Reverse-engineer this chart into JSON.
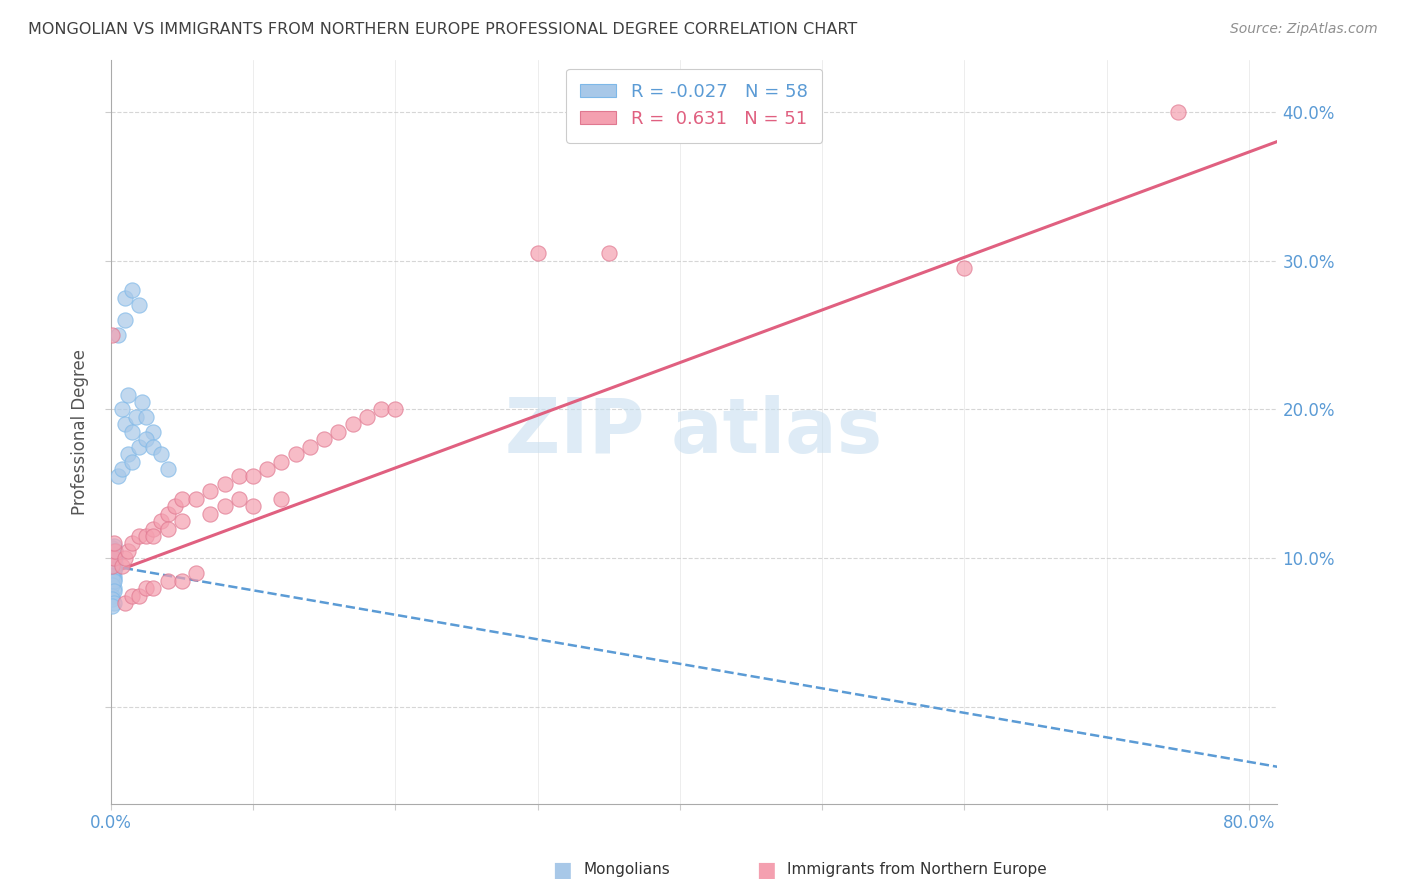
{
  "title": "MONGOLIAN VS IMMIGRANTS FROM NORTHERN EUROPE PROFESSIONAL DEGREE CORRELATION CHART",
  "source": "Source: ZipAtlas.com",
  "ylabel": "Professional Degree",
  "blue_color": "#A8C8E8",
  "blue_edge": "#7EB8E8",
  "pink_color": "#F4A0B0",
  "pink_edge": "#E07890",
  "trend_blue_color": "#5B9BD5",
  "trend_pink_color": "#E06080",
  "watermark_color": "#C8DFF0",
  "title_color": "#404040",
  "source_color": "#909090",
  "tick_color": "#5B9BD5",
  "ylabel_color": "#555555",
  "grid_color": "#CCCCCC",
  "xlim": [
    0.0,
    0.82
  ],
  "ylim": [
    -0.065,
    0.435
  ],
  "x_ticks": [
    0.0,
    0.1,
    0.2,
    0.3,
    0.4,
    0.5,
    0.6,
    0.7,
    0.8
  ],
  "y_ticks": [
    0.0,
    0.1,
    0.2,
    0.3,
    0.4
  ],
  "trend_pink_x0": 0.0,
  "trend_pink_y0": 0.09,
  "trend_pink_x1": 0.82,
  "trend_pink_y1": 0.38,
  "trend_blue_x0": 0.0,
  "trend_blue_y0": 0.095,
  "trend_blue_x1": 0.82,
  "trend_blue_y1": -0.04,
  "mongolians_x": [
    0.002,
    0.001,
    0.003,
    0.001,
    0.002,
    0.001,
    0.002,
    0.003,
    0.001,
    0.002,
    0.001,
    0.002,
    0.001,
    0.003,
    0.001,
    0.002,
    0.001,
    0.002,
    0.001,
    0.002,
    0.001,
    0.002,
    0.001,
    0.002,
    0.001,
    0.002,
    0.001,
    0.002,
    0.001,
    0.002,
    0.001,
    0.002,
    0.001,
    0.002,
    0.001,
    0.008,
    0.01,
    0.012,
    0.015,
    0.018,
    0.022,
    0.025,
    0.03,
    0.005,
    0.008,
    0.012,
    0.015,
    0.02,
    0.025,
    0.03,
    0.035,
    0.04,
    0.01,
    0.015,
    0.02,
    0.005,
    0.01
  ],
  "mongolians_y": [
    0.095,
    0.098,
    0.1,
    0.1,
    0.102,
    0.103,
    0.105,
    0.105,
    0.107,
    0.108,
    0.09,
    0.092,
    0.095,
    0.096,
    0.098,
    0.1,
    0.1,
    0.102,
    0.103,
    0.105,
    0.085,
    0.088,
    0.09,
    0.092,
    0.083,
    0.086,
    0.088,
    0.08,
    0.082,
    0.085,
    0.075,
    0.078,
    0.073,
    0.07,
    0.068,
    0.2,
    0.19,
    0.21,
    0.185,
    0.195,
    0.205,
    0.195,
    0.185,
    0.155,
    0.16,
    0.17,
    0.165,
    0.175,
    0.18,
    0.175,
    0.17,
    0.16,
    0.275,
    0.28,
    0.27,
    0.25,
    0.26
  ],
  "north_x": [
    0.001,
    0.002,
    0.003,
    0.002,
    0.001,
    0.008,
    0.01,
    0.012,
    0.015,
    0.02,
    0.025,
    0.03,
    0.035,
    0.04,
    0.045,
    0.05,
    0.06,
    0.07,
    0.08,
    0.09,
    0.1,
    0.11,
    0.12,
    0.13,
    0.14,
    0.15,
    0.16,
    0.17,
    0.18,
    0.19,
    0.2,
    0.01,
    0.015,
    0.02,
    0.025,
    0.03,
    0.04,
    0.05,
    0.06,
    0.03,
    0.04,
    0.05,
    0.07,
    0.08,
    0.09,
    0.1,
    0.12,
    0.3,
    0.35,
    0.6,
    0.75
  ],
  "north_y": [
    0.095,
    0.1,
    0.105,
    0.11,
    0.25,
    0.095,
    0.1,
    0.105,
    0.11,
    0.115,
    0.115,
    0.12,
    0.125,
    0.13,
    0.135,
    0.14,
    0.14,
    0.145,
    0.15,
    0.155,
    0.155,
    0.16,
    0.165,
    0.17,
    0.175,
    0.18,
    0.185,
    0.19,
    0.195,
    0.2,
    0.2,
    0.07,
    0.075,
    0.075,
    0.08,
    0.08,
    0.085,
    0.085,
    0.09,
    0.115,
    0.12,
    0.125,
    0.13,
    0.135,
    0.14,
    0.135,
    0.14,
    0.305,
    0.305,
    0.295,
    0.4
  ]
}
